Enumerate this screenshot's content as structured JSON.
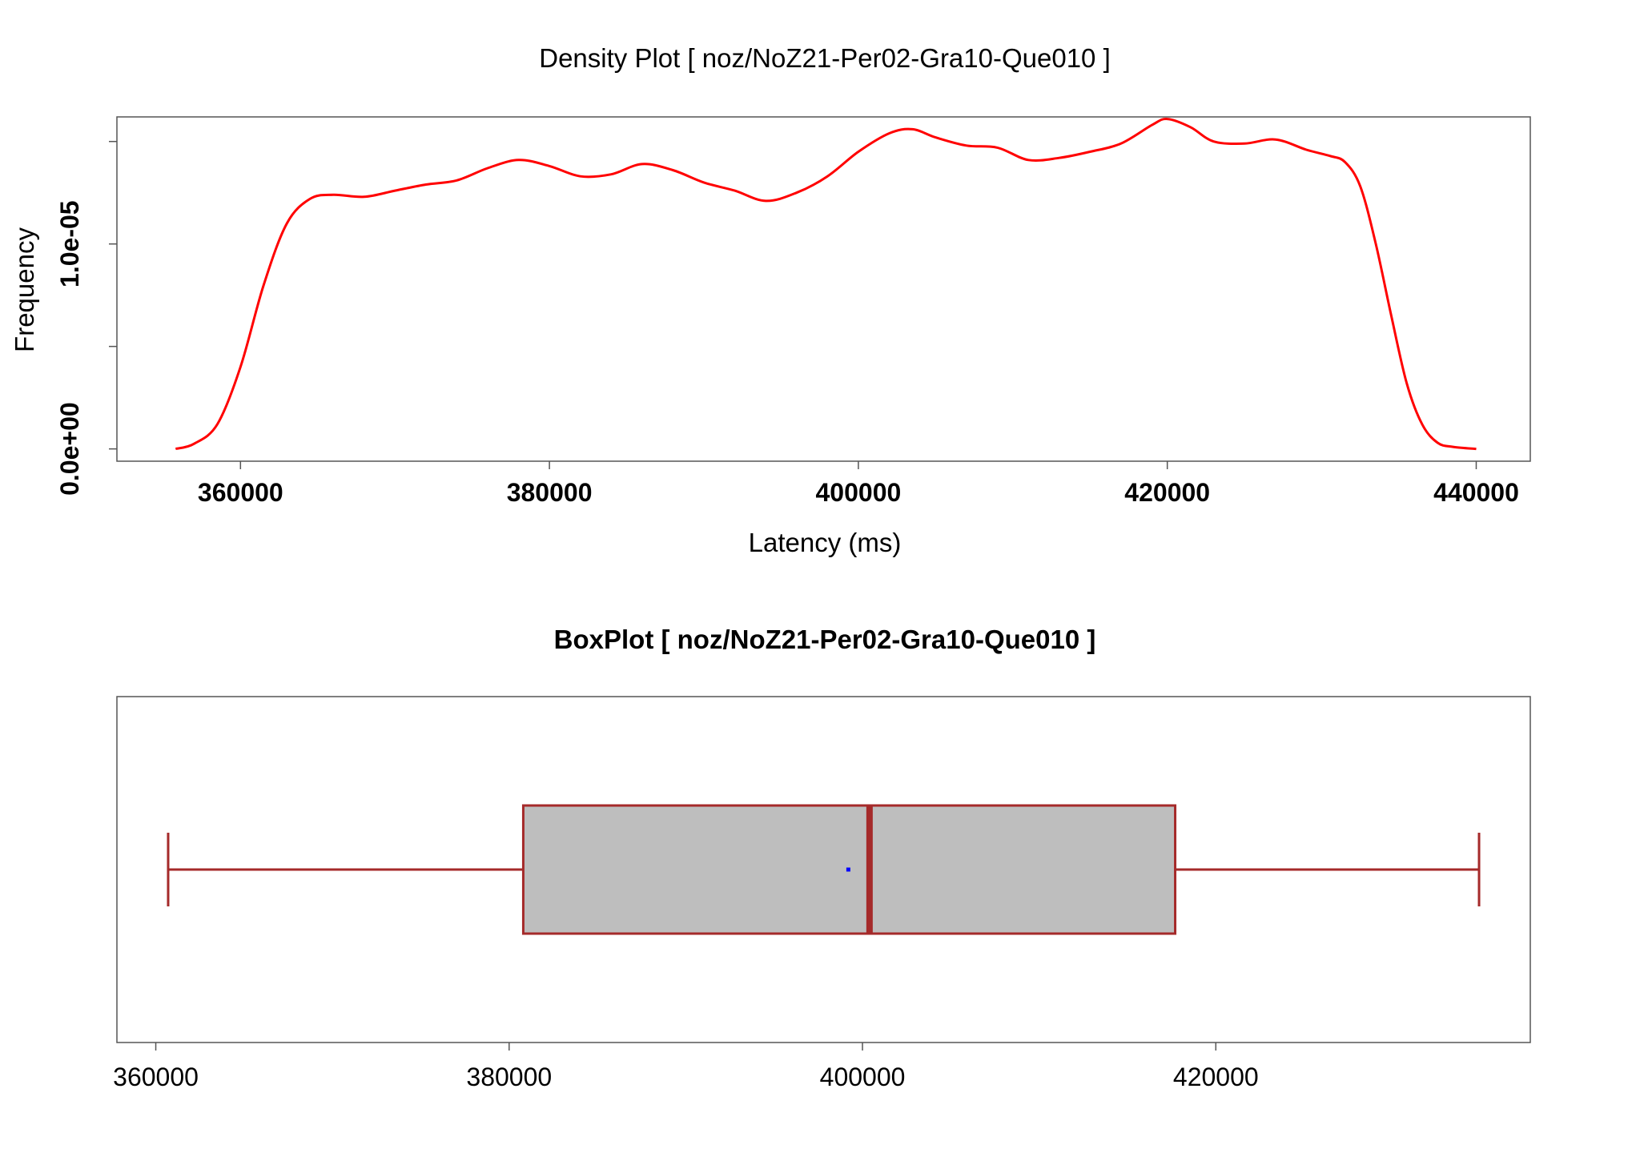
{
  "chart_data": [
    {
      "type": "line",
      "title": "Density Plot [ noz/NoZ21-Per02-Gra10-Que010 ]",
      "xlabel": "Latency (ms)",
      "ylabel": "Frequency",
      "xlim": [
        352000,
        443500
      ],
      "ylim": [
        -6e-07,
        1.62e-05
      ],
      "x_ticks": [
        360000,
        380000,
        400000,
        420000,
        440000
      ],
      "x_tick_labels": [
        "360000",
        "380000",
        "400000",
        "420000",
        "440000"
      ],
      "y_ticks": [
        0,
        5e-06,
        1e-05,
        1.5e-05
      ],
      "y_tick_labels": [
        "0.0e+00",
        "",
        "1.0e-05",
        ""
      ],
      "series": [
        {
          "color": "#ff0000",
          "x": [
            355800,
            357000,
            358500,
            360000,
            361500,
            363000,
            364500,
            366000,
            368000,
            370000,
            372000,
            374000,
            376000,
            378000,
            380000,
            382000,
            384000,
            386000,
            388000,
            390000,
            392000,
            394000,
            396000,
            398000,
            400000,
            402000,
            403500,
            405000,
            407000,
            409000,
            411000,
            413000,
            415000,
            417000,
            419000,
            420000,
            421500,
            423000,
            425000,
            427000,
            429000,
            430500,
            431500,
            432500,
            433500,
            434500,
            435500,
            436500,
            437500,
            438500,
            440000
          ],
          "y": [
            0.0,
            2.5e-07,
            1.2e-06,
            4e-06,
            8e-06,
            1.1e-05,
            1.22e-05,
            1.24e-05,
            1.23e-05,
            1.26e-05,
            1.29e-05,
            1.31e-05,
            1.37e-05,
            1.41e-05,
            1.38e-05,
            1.33e-05,
            1.34e-05,
            1.39e-05,
            1.36e-05,
            1.3e-05,
            1.26e-05,
            1.21e-05,
            1.25e-05,
            1.33e-05,
            1.45e-05,
            1.54e-05,
            1.56e-05,
            1.52e-05,
            1.48e-05,
            1.47e-05,
            1.41e-05,
            1.42e-05,
            1.45e-05,
            1.49e-05,
            1.58e-05,
            1.61e-05,
            1.57e-05,
            1.5e-05,
            1.49e-05,
            1.51e-05,
            1.46e-05,
            1.43e-05,
            1.4e-05,
            1.28e-05,
            1e-05,
            6.5e-06,
            3.2e-06,
            1.2e-06,
            3e-07,
            1e-07,
            0.0
          ]
        }
      ]
    },
    {
      "type": "box",
      "title": "BoxPlot [ noz/NoZ21-Per02-Gra10-Que010 ]",
      "xlim": [
        357800,
        437800
      ],
      "x_ticks": [
        360000,
        380000,
        400000,
        420000
      ],
      "x_tick_labels": [
        "360000",
        "380000",
        "400000",
        "420000"
      ],
      "box": {
        "whisker_low": 360700,
        "q1": 380800,
        "median": 400400,
        "q3": 417700,
        "whisker_high": 434900,
        "mean": 399200
      },
      "box_fill": "#bebebe",
      "box_line": "#a52a2a",
      "mean_color": "#0000ff"
    }
  ]
}
